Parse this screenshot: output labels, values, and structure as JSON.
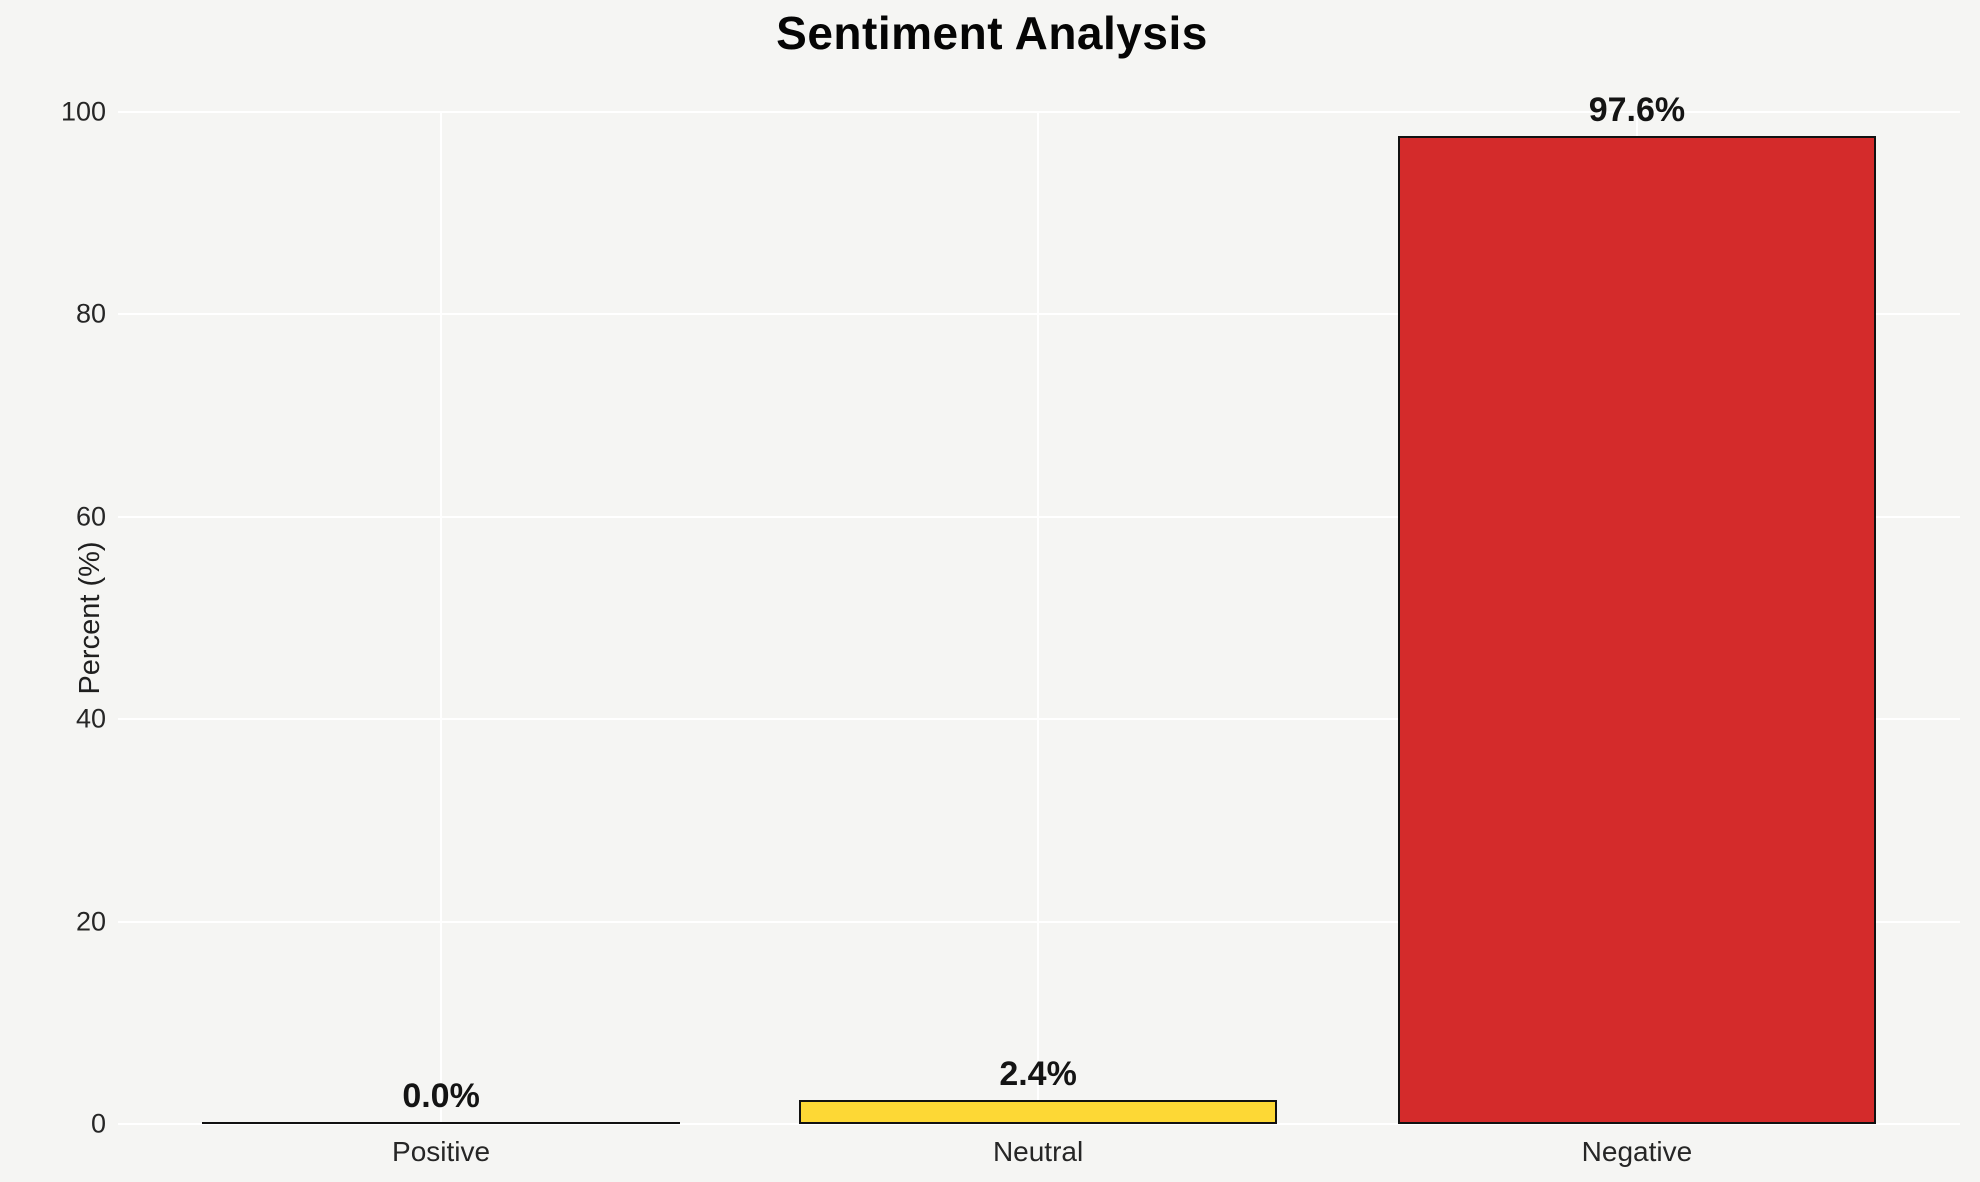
{
  "chart_data": {
    "type": "bar",
    "title": "Sentiment Analysis",
    "xlabel": "",
    "ylabel": "Percent (%)",
    "categories": [
      "Positive",
      "Neutral",
      "Negative"
    ],
    "values": [
      0.0,
      2.4,
      97.6
    ],
    "data_labels": [
      "0.0%",
      "2.4%",
      "97.6%"
    ],
    "bar_colors": [
      null,
      "#fdd835",
      "#d42b2b"
    ],
    "bar_edge_color": "#111111",
    "ylim": [
      0,
      100
    ],
    "yticks": [
      0,
      20,
      40,
      60,
      80,
      100
    ],
    "grid": true,
    "grid_color": "#ffffff",
    "background_color": "#f5f5f3",
    "legend_position": "none"
  }
}
